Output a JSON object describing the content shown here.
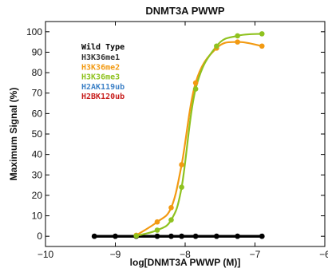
{
  "chart_data": {
    "type": "line",
    "title": "DNMT3A PWWP",
    "xlabel": "log[DNMT3A PWWP (M)]",
    "ylabel": "Maximum Signal (%)",
    "xlim": [
      -10,
      -6
    ],
    "ylim": [
      -5,
      105
    ],
    "xticks": [
      -10,
      -9,
      -8,
      -7,
      -6
    ],
    "xtick_labels": [
      "−10",
      "−9",
      "−8",
      "−7",
      "−6"
    ],
    "yticks": [
      0,
      10,
      20,
      30,
      40,
      50,
      60,
      70,
      80,
      90,
      100
    ],
    "grid": false,
    "legend_position": "top-left",
    "legend_title": "Wild Type",
    "series": [
      {
        "name": "H3K36me1",
        "color": "#333333",
        "x": [
          -9.3,
          -9.0,
          -8.7,
          -8.4,
          -8.2,
          -8.05,
          -7.85,
          -7.55,
          -7.25,
          -6.9
        ],
        "values": [
          0,
          0,
          0,
          0,
          0,
          0,
          0,
          0,
          0,
          0
        ]
      },
      {
        "name": "H3K36me2",
        "color": "#f29a12",
        "x": [
          -8.7,
          -8.4,
          -8.2,
          -8.05,
          -7.85,
          -7.55,
          -7.25,
          -6.9
        ],
        "values": [
          0.5,
          7,
          14,
          35,
          75,
          92,
          95,
          93
        ]
      },
      {
        "name": "H3K36me3",
        "color": "#8fc21f",
        "x": [
          -8.7,
          -8.4,
          -8.2,
          -8.05,
          -7.85,
          -7.55,
          -7.25,
          -6.9
        ],
        "values": [
          0.2,
          3,
          8,
          24,
          72,
          93,
          98,
          99
        ]
      },
      {
        "name": "H2AK119ub",
        "color": "#3f82c7",
        "x": [
          -9.3,
          -9.0,
          -8.7,
          -8.4,
          -8.2,
          -8.05,
          -7.85,
          -7.55,
          -7.25,
          -6.9
        ],
        "values": [
          0,
          0,
          0,
          0,
          0,
          0,
          0,
          0,
          0,
          0
        ]
      },
      {
        "name": "H2BK120ub",
        "color": "#c8201e",
        "x": [
          -9.3,
          -9.0,
          -8.7,
          -8.4,
          -8.2,
          -8.05,
          -7.85,
          -7.55,
          -7.25,
          -6.9
        ],
        "values": [
          0,
          0,
          0,
          0,
          0,
          0,
          0,
          0,
          0,
          0
        ]
      }
    ],
    "curve_color_overlap": "#000000",
    "legend_title_color": "#000000"
  }
}
